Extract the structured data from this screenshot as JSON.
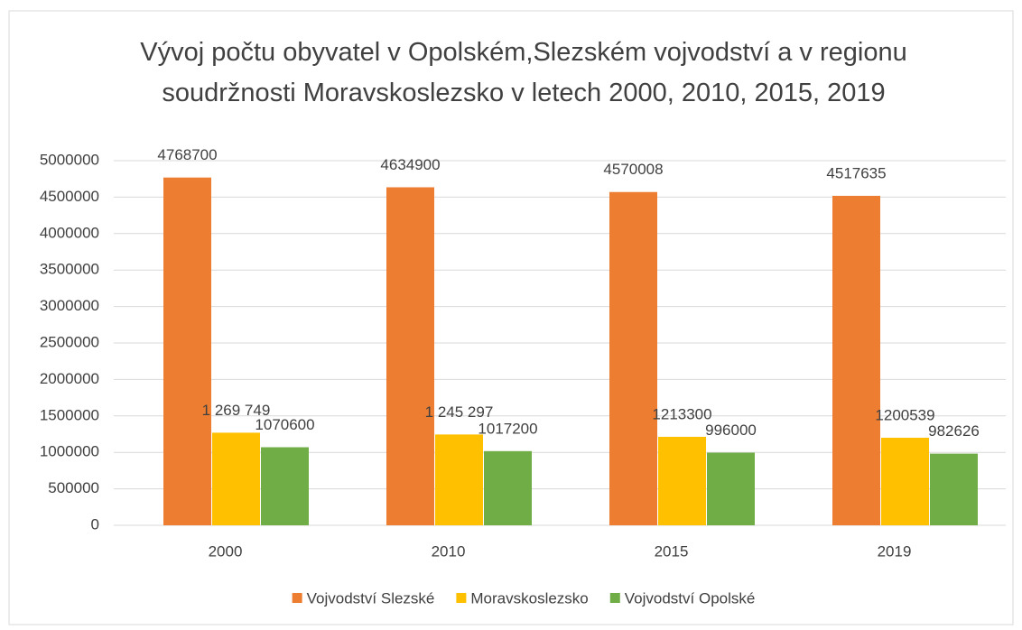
{
  "chart_data": {
    "type": "bar",
    "title": "Vývoj počtu obyvatel v Opolském,Slezském vojvodství a v regionu soudržnosti Moravskoslezsko v letech 2000, 2010, 2015, 2019",
    "categories": [
      "2000",
      "2010",
      "2015",
      "2019"
    ],
    "series": [
      {
        "name": "Vojvodství Slezské",
        "color": "#ed7d31",
        "values": [
          4768700,
          4634900,
          4570008,
          4517635
        ]
      },
      {
        "name": "Moravskoslezsko",
        "color": "#ffc000",
        "values": [
          1269749,
          1245297,
          1213300,
          1200539
        ],
        "value_labels": [
          "1 269 749",
          "1 245 297",
          "1213300",
          "1200539"
        ]
      },
      {
        "name": "Vojvodství Opolské",
        "color": "#70ad47",
        "values": [
          1070600,
          1017200,
          996000,
          982626
        ]
      }
    ],
    "ylim": [
      0,
      5000000
    ],
    "yticks": [
      0,
      500000,
      1000000,
      1500000,
      2000000,
      2500000,
      3000000,
      3500000,
      4000000,
      4500000,
      5000000
    ],
    "grid": true,
    "legend": "bottom"
  }
}
